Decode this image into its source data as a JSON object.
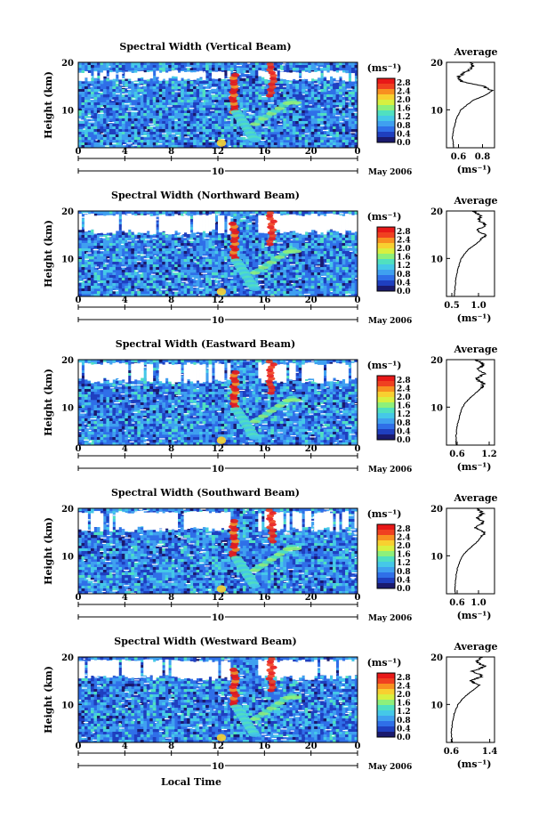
{
  "colors": {
    "colorbar": [
      "#1a1a6e",
      "#1f3fbf",
      "#2f6fe8",
      "#3fa0f0",
      "#45c8e8",
      "#50e0c0",
      "#8ef07a",
      "#d8f040",
      "#f8d030",
      "#f89020",
      "#f04020",
      "#e81818"
    ],
    "background_field": "#2a5ae0",
    "missing": "#ffffff"
  },
  "chart_data": [
    {
      "type": "heatmap",
      "title": "Spectral Width (Vertical Beam)",
      "ylabel": "Height (km)",
      "unit_label": "(ms⁻¹)",
      "x_ticks": [
        "0",
        "4",
        "8",
        "12",
        "16",
        "20",
        "0"
      ],
      "y_ticks": [
        "20",
        "10"
      ],
      "date_label": "May 2006",
      "day_label": "10",
      "colorbar_ticks": [
        "2.8",
        "2.4",
        "2.0",
        "1.6",
        "1.2",
        "0.8",
        "0.4",
        "0.0"
      ],
      "xlim": [
        0,
        24
      ],
      "ylim": [
        2,
        20
      ],
      "zlim": [
        0,
        3.0
      ],
      "profile": {
        "title": "Average",
        "xlabel": "(ms⁻¹)",
        "x_ticks": [
          "0.6",
          "0.8"
        ],
        "xlim": [
          0.5,
          0.9
        ],
        "y_ticks": [
          "20",
          "10"
        ],
        "height": [
          2,
          4,
          6,
          8,
          10,
          12,
          13,
          14,
          15,
          16,
          17,
          18,
          19,
          20
        ],
        "value": [
          0.56,
          0.55,
          0.56,
          0.58,
          0.62,
          0.72,
          0.82,
          0.88,
          0.8,
          0.62,
          0.6,
          0.66,
          0.72,
          0.7
        ]
      }
    },
    {
      "type": "heatmap",
      "title": "Spectral Width (Northward Beam)",
      "ylabel": "Height (km)",
      "unit_label": "(ms⁻¹)",
      "x_ticks": [
        "0",
        "4",
        "8",
        "12",
        "16",
        "20",
        "0"
      ],
      "y_ticks": [
        "20",
        "10"
      ],
      "date_label": "May 2006",
      "day_label": "10",
      "colorbar_ticks": [
        "2.8",
        "2.4",
        "2.0",
        "1.6",
        "1.2",
        "0.8",
        "0.4",
        "0.0"
      ],
      "xlim": [
        0,
        24
      ],
      "ylim": [
        2,
        20
      ],
      "zlim": [
        0,
        3.0
      ],
      "profile": {
        "title": "Average",
        "xlabel": "(ms⁻¹)",
        "x_ticks": [
          "0.5",
          "1.0"
        ],
        "xlim": [
          0.4,
          1.3
        ],
        "y_ticks": [
          "20",
          "10"
        ],
        "height": [
          2,
          4,
          6,
          8,
          10,
          11,
          12,
          13,
          14,
          15,
          16,
          17,
          18,
          19,
          20
        ],
        "value": [
          0.55,
          0.56,
          0.58,
          0.62,
          0.68,
          0.74,
          0.82,
          0.95,
          1.05,
          1.15,
          0.95,
          1.15,
          1.0,
          1.05,
          0.9
        ]
      }
    },
    {
      "type": "heatmap",
      "title": "Spectral Width (Eastward Beam)",
      "ylabel": "Height (km)",
      "unit_label": "(ms⁻¹)",
      "x_ticks": [
        "0",
        "4",
        "8",
        "12",
        "16",
        "20",
        "0"
      ],
      "y_ticks": [
        "20",
        "10"
      ],
      "date_label": "May 2006",
      "day_label": "10",
      "colorbar_ticks": [
        "2.8",
        "2.4",
        "2.0",
        "1.6",
        "1.2",
        "0.8",
        "0.4",
        "0.0"
      ],
      "xlim": [
        0,
        24
      ],
      "ylim": [
        2,
        20
      ],
      "zlim": [
        0,
        3.0
      ],
      "profile": {
        "title": "Average",
        "xlabel": "(ms⁻¹)",
        "x_ticks": [
          "0.6",
          "1.2"
        ],
        "xlim": [
          0.4,
          1.3
        ],
        "y_ticks": [
          "20",
          "10"
        ],
        "height": [
          2,
          4,
          6,
          8,
          10,
          11,
          12,
          13,
          14,
          15,
          16,
          17,
          18,
          19,
          20
        ],
        "value": [
          0.58,
          0.58,
          0.6,
          0.64,
          0.7,
          0.76,
          0.85,
          0.95,
          1.05,
          1.1,
          0.95,
          1.1,
          1.0,
          1.1,
          0.95
        ]
      }
    },
    {
      "type": "heatmap",
      "title": "Spectral Width (Southward Beam)",
      "ylabel": "Height (km)",
      "unit_label": "(ms⁻¹)",
      "x_ticks": [
        "0",
        "4",
        "8",
        "12",
        "16",
        "20",
        "0"
      ],
      "y_ticks": [
        "20",
        "10"
      ],
      "date_label": "May 2006",
      "day_label": "10",
      "colorbar_ticks": [
        "2.8",
        "2.4",
        "2.0",
        "1.6",
        "1.2",
        "0.8",
        "0.4",
        "0.0"
      ],
      "xlim": [
        0,
        24
      ],
      "ylim": [
        2,
        20
      ],
      "zlim": [
        0,
        3.0
      ],
      "profile": {
        "title": "Average",
        "xlabel": "(ms⁻¹)",
        "x_ticks": [
          "0.6",
          "1.0"
        ],
        "xlim": [
          0.4,
          1.3
        ],
        "y_ticks": [
          "20",
          "10"
        ],
        "height": [
          2,
          4,
          6,
          8,
          10,
          11,
          12,
          13,
          14,
          15,
          16,
          17,
          18,
          19,
          20
        ],
        "value": [
          0.56,
          0.56,
          0.58,
          0.62,
          0.7,
          0.78,
          0.88,
          0.98,
          1.05,
          1.12,
          0.92,
          1.1,
          0.98,
          1.08,
          0.95
        ]
      }
    },
    {
      "type": "heatmap",
      "title": "Spectral Width (Westward Beam)",
      "ylabel": "Height (km)",
      "xlabel": "Local Time",
      "unit_label": "(ms⁻¹)",
      "x_ticks": [
        "0",
        "4",
        "8",
        "12",
        "16",
        "20",
        "0"
      ],
      "y_ticks": [
        "20",
        "10"
      ],
      "date_label": "May 2006",
      "day_label": "10",
      "colorbar_ticks": [
        "2.8",
        "2.4",
        "2.0",
        "1.6",
        "1.2",
        "0.8",
        "0.4",
        "0.0"
      ],
      "xlim": [
        0,
        24
      ],
      "ylim": [
        2,
        20
      ],
      "zlim": [
        0,
        3.0
      ],
      "profile": {
        "title": "Average",
        "xlabel": "(ms⁻¹)",
        "x_ticks": [
          "0.6",
          "1.4"
        ],
        "xlim": [
          0.5,
          1.5
        ],
        "y_ticks": [
          "20",
          "10"
        ],
        "height": [
          2,
          4,
          6,
          8,
          10,
          11,
          12,
          13,
          14,
          15,
          16,
          17,
          18,
          19,
          20
        ],
        "value": [
          0.62,
          0.6,
          0.62,
          0.66,
          0.74,
          0.82,
          0.92,
          1.05,
          1.18,
          1.0,
          1.25,
          1.05,
          1.3,
          1.1,
          1.25
        ]
      }
    }
  ]
}
